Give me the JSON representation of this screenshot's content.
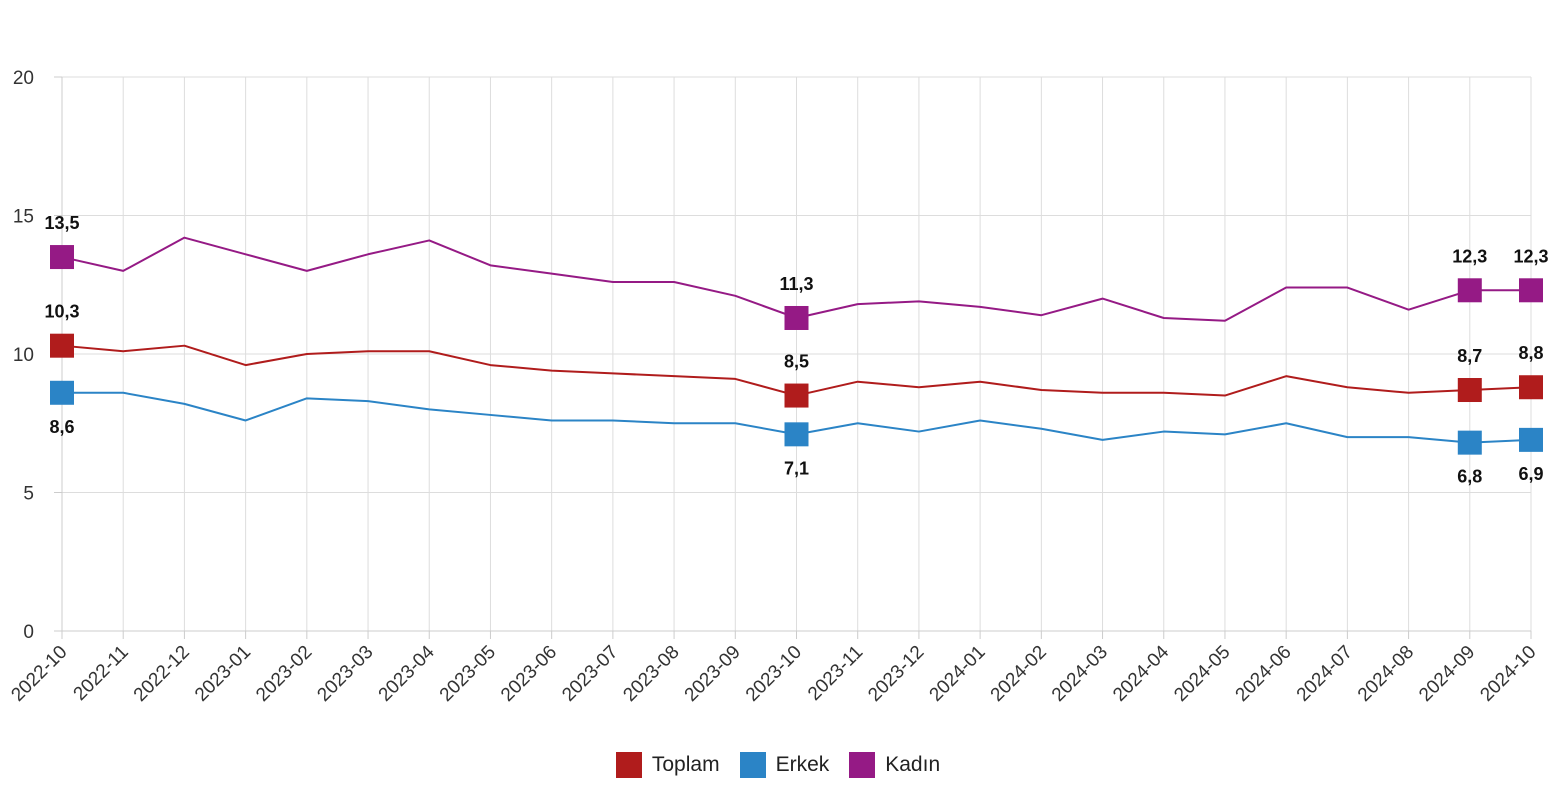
{
  "chart_data": {
    "type": "line",
    "categories": [
      "2022-10",
      "2022-11",
      "2022-12",
      "2023-01",
      "2023-02",
      "2023-03",
      "2023-04",
      "2023-05",
      "2023-06",
      "2023-07",
      "2023-08",
      "2023-09",
      "2023-10",
      "2023-11",
      "2023-12",
      "2024-01",
      "2024-02",
      "2024-03",
      "2024-04",
      "2024-05",
      "2024-06",
      "2024-07",
      "2024-08",
      "2024-09",
      "2024-10"
    ],
    "ylim": [
      0,
      20
    ],
    "yticks": [
      0,
      5,
      10,
      15,
      20
    ],
    "grid": true,
    "legend_position": "bottom-center",
    "series": [
      {
        "name": "Toplam",
        "color": "#b01c1c",
        "values": [
          10.3,
          10.1,
          10.3,
          9.6,
          10.0,
          10.1,
          10.1,
          9.6,
          9.4,
          9.3,
          9.2,
          9.1,
          8.5,
          9.0,
          8.8,
          9.0,
          8.7,
          8.6,
          8.6,
          8.5,
          9.2,
          8.8,
          8.6,
          8.7,
          8.8
        ],
        "markers": [
          0,
          12,
          23,
          24
        ],
        "labels": [
          "10,3",
          "8,5",
          "8,7",
          "8,8"
        ],
        "label_side": "above"
      },
      {
        "name": "Erkek",
        "color": "#2b84c6",
        "values": [
          8.6,
          8.6,
          8.2,
          7.6,
          8.4,
          8.3,
          8.0,
          7.8,
          7.6,
          7.6,
          7.5,
          7.5,
          7.1,
          7.5,
          7.2,
          7.6,
          7.3,
          6.9,
          7.2,
          7.1,
          7.5,
          7.0,
          7.0,
          6.8,
          6.9
        ],
        "markers": [
          0,
          12,
          23,
          24
        ],
        "labels": [
          "8,6",
          "7,1",
          "6,8",
          "6,9"
        ],
        "label_side": "below"
      },
      {
        "name": "Kadın",
        "color": "#951a85",
        "values": [
          13.5,
          13.0,
          14.2,
          13.6,
          13.0,
          13.6,
          14.1,
          13.2,
          12.9,
          12.6,
          12.6,
          12.1,
          11.3,
          11.8,
          11.9,
          11.7,
          11.4,
          12.0,
          11.3,
          11.2,
          12.4,
          12.4,
          11.6,
          12.3,
          12.3
        ],
        "markers": [
          0,
          12,
          23,
          24
        ],
        "labels": [
          "13,5",
          "11,3",
          "12,3",
          "12,3"
        ],
        "label_side": "above"
      }
    ]
  }
}
